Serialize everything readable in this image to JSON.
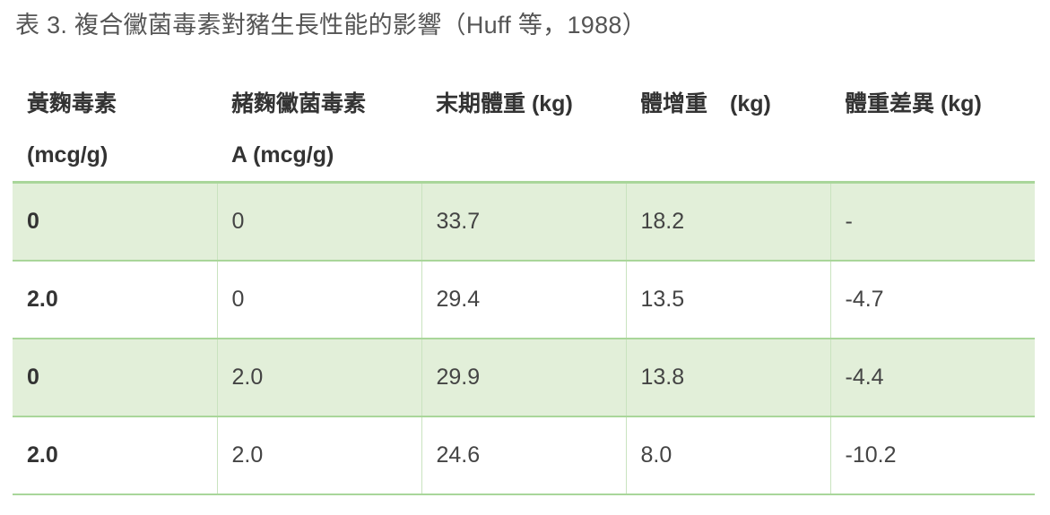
{
  "caption": "表 3. 複合黴菌毒素對豬生長性能的影響（Huff 等，1988）",
  "table": {
    "headers": [
      {
        "line1": "黃麴毒素",
        "line2": "(mcg/g)"
      },
      {
        "line1": "赭麴黴菌毒素",
        "line2": "A (mcg/g)"
      },
      {
        "line1": "末期體重 (kg)",
        "line2": ""
      },
      {
        "line1": "體增重　(kg)",
        "line2": ""
      },
      {
        "line1": "體重差異 (kg)",
        "line2": ""
      }
    ],
    "rows": [
      [
        "0",
        "0",
        "33.7",
        "18.2",
        "-"
      ],
      [
        "2.0",
        "0",
        "29.4",
        "13.5",
        "-4.7"
      ],
      [
        "0",
        "2.0",
        "29.9",
        "13.8",
        "-4.4"
      ],
      [
        "2.0",
        "2.0",
        "24.6",
        "8.0",
        "-10.2"
      ]
    ]
  },
  "colors": {
    "row_highlight": "#e2efd9",
    "border": "#a9d69a"
  }
}
